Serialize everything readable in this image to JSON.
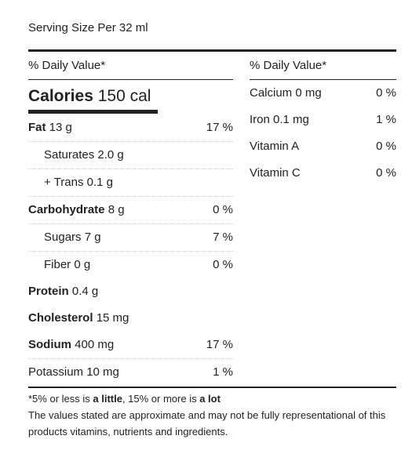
{
  "serving": "Serving Size Per 32 ml",
  "left": {
    "dv_header": "% Daily Value*",
    "calories": {
      "label": "Calories",
      "value": "150 cal"
    },
    "rows": [
      {
        "name": "Fat",
        "amount": "13 g",
        "pct": "17 %"
      },
      {
        "name": "Saturates",
        "amount": "2.0 g",
        "pct": ""
      },
      {
        "name": "+ Trans",
        "amount": "0.1 g",
        "pct": ""
      },
      {
        "name": "Carbohydrate",
        "amount": "8 g",
        "pct": "0 %"
      },
      {
        "name": "Sugars",
        "amount": "7 g",
        "pct": "7 %"
      },
      {
        "name": "Fiber",
        "amount": "0 g",
        "pct": "0 %"
      },
      {
        "name": "Protein",
        "amount": "0.4 g",
        "pct": ""
      },
      {
        "name": "Cholesterol",
        "amount": "15 mg",
        "pct": ""
      },
      {
        "name": "Sodium",
        "amount": "400 mg",
        "pct": "17 %"
      },
      {
        "name": "Potassium",
        "amount": "10 mg",
        "pct": "1 %"
      }
    ]
  },
  "right": {
    "dv_header": "% Daily Value*",
    "rows": [
      {
        "label": "Calcium 0 mg",
        "pct": "0 %"
      },
      {
        "label": "Iron 0.1 mg",
        "pct": "1 %"
      },
      {
        "label": "Vitamin A",
        "pct": "0 %"
      },
      {
        "label": "Vitamin C",
        "pct": "0 %"
      }
    ]
  },
  "footnote": {
    "part1": "*5% or less is ",
    "bold1": "a little",
    "part2": ", 15% or more is ",
    "bold2": "a lot",
    "disclaimer": "The values stated are approximate and may not be fully representational of this products vitamins, nutrients and ingredients."
  }
}
